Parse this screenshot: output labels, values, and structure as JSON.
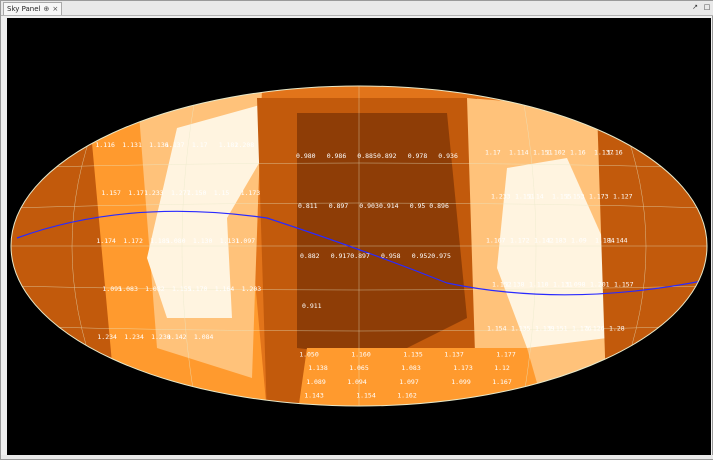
{
  "panel": {
    "tab_title": "Sky Panel",
    "pin_glyph": "⊕",
    "close_glyph": "×",
    "window_glyphs": [
      "↗",
      "□"
    ]
  },
  "colors": {
    "background": "#000000",
    "band_white": "#fff4e0",
    "band_light": "#ffc27a",
    "band_orange": "#ff9a2e",
    "band_dark": "#e2741a",
    "band_darker": "#c25a0c",
    "band_darkest": "#8e3d06",
    "grid": "#e8e8c8",
    "ecliptic": "#2a2aff",
    "annotation": "#ffffff"
  },
  "labels_left": [
    "1.116",
    "1.131",
    "1.136",
    "1.137",
    "1.17",
    "1.182",
    "1.208",
    "1.157",
    "1.17",
    "1.233",
    "1.277",
    "1.150",
    "1.15",
    "1.173",
    "1.174",
    "1.172",
    "1.185",
    "1.080",
    "1.130",
    "1.131",
    "1.097",
    "1.095",
    "1.083",
    "1.082",
    "1.155",
    "1.170",
    "1.164",
    "1.203",
    "1.234",
    "1.234",
    "1.230",
    "1.142",
    "1.084"
  ],
  "labels_center": [
    "0.980",
    "0.986",
    "0.885",
    "0.892",
    "0.978",
    "0.936",
    "0.811",
    "0.897",
    "0.903",
    "0.914",
    "0.95",
    "0.896",
    "0.882",
    "0.917",
    "0.897",
    "0.958",
    "0.952",
    "0.975",
    "0.911"
  ],
  "labels_right": [
    "1.17",
    "1.114",
    "1.151",
    "1.102",
    "1.16",
    "1.137",
    "1.16",
    "1.233",
    "1.151",
    "1.14",
    "1.155",
    "1.153",
    "1.173",
    "1.127",
    "1.167",
    "1.172",
    "1.142",
    "1.183",
    "1.09",
    "1.184",
    "1.144",
    "1.152",
    "1.138",
    "1.110",
    "1.131",
    "1.098",
    "1.201",
    "1.157",
    "1.154",
    "1.135",
    "1.139",
    "1.151",
    "1.176",
    "1.126",
    "1.28"
  ],
  "labels_bottom": [
    "1.050",
    "1.160",
    "1.135",
    "1.137",
    "1.177",
    "1.138",
    "1.065",
    "1.083",
    "1.173",
    "1.12",
    "1.089",
    "1.094",
    "1.097",
    "1.099",
    "1.167",
    "1.143",
    "1.154",
    "1.162"
  ]
}
